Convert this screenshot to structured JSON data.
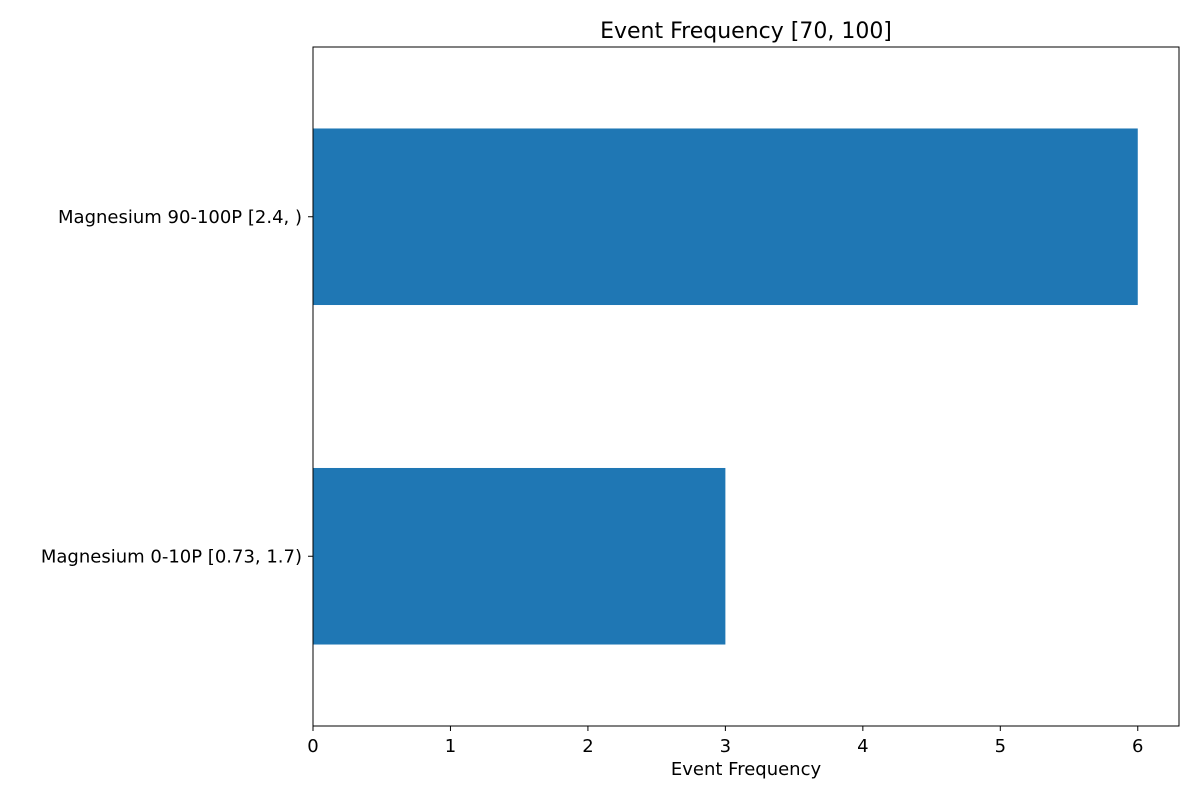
{
  "chart_data": {
    "type": "bar",
    "orientation": "horizontal",
    "title": "Event Frequency [70, 100]",
    "xlabel": "Event Frequency",
    "ylabel": "",
    "categories": [
      "Magnesium 90-100P [2.4, )",
      "Magnesium 0-10P [0.73, 1.7)"
    ],
    "values": [
      6,
      3
    ],
    "xlim": [
      0,
      6.3
    ],
    "xticks": [
      0,
      1,
      2,
      3,
      4,
      5,
      6
    ],
    "grid": false,
    "legend": "none",
    "bar_color": "#1f77b4"
  }
}
